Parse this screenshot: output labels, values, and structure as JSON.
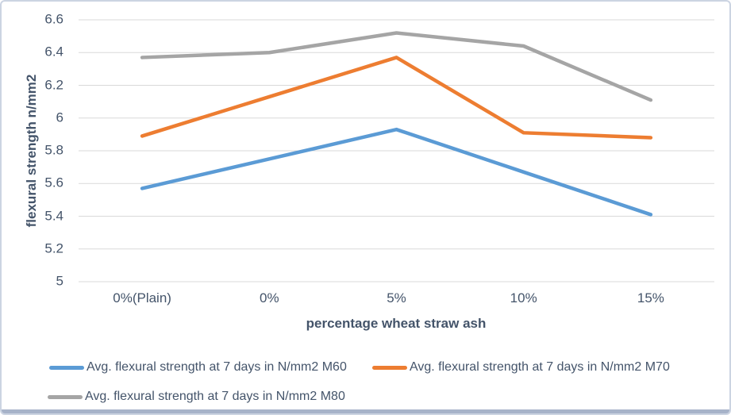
{
  "chart_data": {
    "type": "line",
    "categories": [
      "0%(Plain)",
      "0%",
      "5%",
      "10%",
      "15%"
    ],
    "series": [
      {
        "name": "Avg. flexural strength at 7 days in N/mm2 M60",
        "color": "#5B9BD5",
        "values": [
          5.57,
          5.75,
          5.93,
          5.67,
          5.41
        ]
      },
      {
        "name": "Avg. flexural strength at 7 days in N/mm2 M70",
        "color": "#ED7D31",
        "values": [
          5.89,
          6.13,
          6.37,
          5.91,
          5.88
        ]
      },
      {
        "name": "Avg. flexural strength at 7 days in N/mm2 M80",
        "color": "#A5A5A5",
        "values": [
          6.37,
          6.4,
          6.52,
          6.44,
          6.11
        ]
      }
    ],
    "title": "",
    "xlabel": "percentage wheat straw ash",
    "ylabel": "flexural strength n/mm2",
    "ylim": [
      5,
      6.6
    ],
    "ytick_step": 0.2,
    "grid": true,
    "legend_position": "bottom"
  },
  "styles": {
    "text_color": "#44546A",
    "gridline_color": "#D9D9D9",
    "background_color": "#FFFFFF",
    "chart_border_color": "#CCD4E2",
    "bottom_bar_color": "#A7B3C9"
  }
}
